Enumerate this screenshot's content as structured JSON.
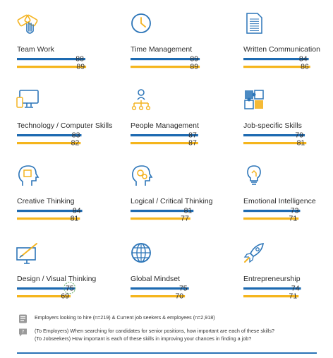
{
  "colors": {
    "employers": "#1d6ab1",
    "jobseekers": "#f5b51c",
    "icon_primary": "#2c75b8",
    "icon_accent": "#f4b320",
    "rule": "#2a73b6"
  },
  "chart_data": {
    "type": "bar",
    "orientation": "horizontal",
    "layout": "small-multiples 3x4 grid",
    "categories": [
      "Team Work",
      "Time Management",
      "Written Communication",
      "Technology / Computer Skills",
      "People Management",
      "Job-specific Skills",
      "Creative Thinking",
      "Logical / Critical Thinking",
      "Emotional Intelligence",
      "Design / Visual Thinking",
      "Global Mindset",
      "Entrepreneurship"
    ],
    "series": [
      {
        "color": "#1d6ab1",
        "values": [
          88,
          89,
          84,
          83,
          87,
          79,
          84,
          81,
          73,
          75,
          75,
          74
        ]
      },
      {
        "color": "#f5b51c",
        "values": [
          89,
          89,
          86,
          82,
          87,
          81,
          81,
          77,
          71,
          69,
          70,
          71
        ]
      }
    ],
    "icons": [
      "handshake-icon",
      "clock-icon",
      "document-icon",
      "computer-icon",
      "org-chart-icon",
      "puzzle-icon",
      "head-bulb-icon",
      "head-gears-icon",
      "lightbulb-icon",
      "design-pen-icon",
      "globe-icon",
      "rocket-icon"
    ],
    "highlight_index": 9,
    "xlim": [
      0,
      100
    ],
    "legend": "footnote below chart"
  },
  "footnotes": {
    "legend_text": "Employers looking to hire (n=219) & Current job seekers & employees (n=2,918)",
    "question_employers": "(To Employers) When searching for candidates for senior positions, how important are each of these skills?",
    "question_jobseekers": "(To Jobseekers) How important is each of these skills in improving your chances in finding a job?"
  }
}
